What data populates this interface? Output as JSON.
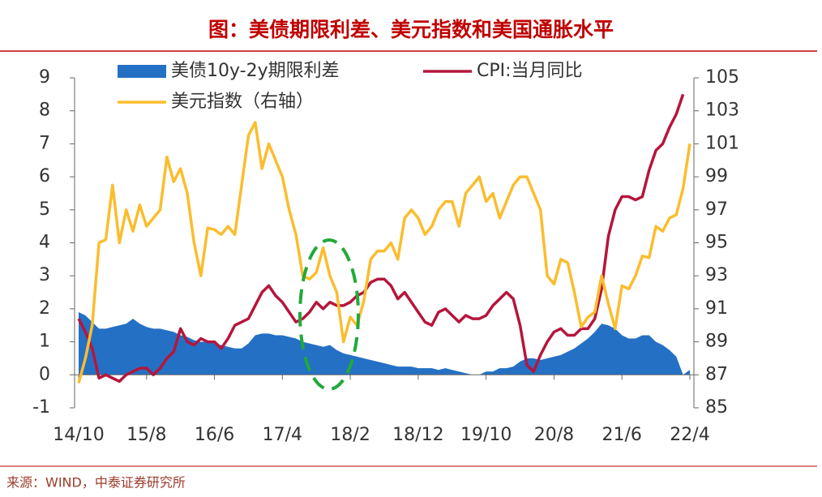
{
  "chart_data": {
    "type": "line",
    "title": "图：美债期限利差、美元指数和美国通胀水平",
    "source": "来源：WIND，中泰证券研究所",
    "categories": [
      "14/10",
      null,
      null,
      null,
      null,
      null,
      null,
      null,
      null,
      null,
      "15/8",
      null,
      null,
      null,
      null,
      null,
      null,
      null,
      null,
      null,
      "16/6",
      null,
      null,
      null,
      null,
      null,
      null,
      null,
      null,
      null,
      "17/4",
      null,
      null,
      null,
      null,
      null,
      null,
      null,
      null,
      null,
      "18/2",
      null,
      null,
      null,
      null,
      null,
      null,
      null,
      null,
      null,
      "18/12",
      null,
      null,
      null,
      null,
      null,
      null,
      null,
      null,
      null,
      "19/10",
      null,
      null,
      null,
      null,
      null,
      null,
      null,
      null,
      null,
      "20/8",
      null,
      null,
      null,
      null,
      null,
      null,
      null,
      null,
      null,
      "21/6",
      null,
      null,
      null,
      null,
      null,
      null,
      null,
      null,
      null,
      "22/4"
    ],
    "ylim": [
      -1,
      9
    ],
    "yticks": [
      -1,
      0,
      1,
      2,
      3,
      4,
      5,
      6,
      7,
      8,
      9
    ],
    "y2lim": [
      85,
      105
    ],
    "y2ticks": [
      85,
      87,
      89,
      91,
      93,
      95,
      97,
      99,
      101,
      103,
      105
    ],
    "series": [
      {
        "name": "美债10y-2y期限利差",
        "type": "area",
        "axis": "y",
        "color": "#2470c4",
        "values": [
          1.9,
          1.8,
          1.6,
          1.4,
          1.4,
          1.45,
          1.5,
          1.55,
          1.7,
          1.55,
          1.45,
          1.4,
          1.4,
          1.35,
          1.3,
          1.2,
          1.15,
          1.05,
          1.0,
          1.0,
          0.95,
          0.9,
          0.85,
          0.8,
          0.8,
          0.95,
          1.2,
          1.25,
          1.25,
          1.2,
          1.2,
          1.15,
          1.1,
          1.0,
          0.95,
          0.9,
          0.85,
          0.9,
          0.75,
          0.65,
          0.6,
          0.55,
          0.5,
          0.45,
          0.4,
          0.35,
          0.3,
          0.25,
          0.25,
          0.25,
          0.2,
          0.2,
          0.2,
          0.15,
          0.2,
          0.15,
          0.1,
          0.05,
          0.0,
          0.0,
          0.1,
          0.1,
          0.2,
          0.2,
          0.25,
          0.4,
          0.5,
          0.5,
          0.45,
          0.5,
          0.55,
          0.6,
          0.7,
          0.8,
          0.95,
          1.1,
          1.3,
          1.55,
          1.5,
          1.4,
          1.2,
          1.1,
          1.1,
          1.2,
          1.2,
          1.0,
          0.9,
          0.75,
          0.55,
          0.0,
          0.15
        ]
      },
      {
        "name": "CPI:当月同比",
        "type": "line",
        "axis": "y",
        "color": "#b5163c",
        "values": [
          1.7,
          1.3,
          0.8,
          -0.1,
          0.0,
          -0.1,
          -0.2,
          0.0,
          0.1,
          0.2,
          0.2,
          0.0,
          0.2,
          0.5,
          0.7,
          1.4,
          1.0,
          0.9,
          1.1,
          1.0,
          1.0,
          0.8,
          1.1,
          1.5,
          1.6,
          1.7,
          2.1,
          2.5,
          2.7,
          2.4,
          2.2,
          1.9,
          1.6,
          1.7,
          1.9,
          2.2,
          2.0,
          2.2,
          2.1,
          2.1,
          2.2,
          2.4,
          2.5,
          2.8,
          2.9,
          2.9,
          2.7,
          2.3,
          2.5,
          2.2,
          1.9,
          1.6,
          1.5,
          1.9,
          2.0,
          1.8,
          1.6,
          1.8,
          1.7,
          1.7,
          1.8,
          2.1,
          2.3,
          2.5,
          2.3,
          1.5,
          0.3,
          0.1,
          0.6,
          1.0,
          1.3,
          1.4,
          1.2,
          1.2,
          1.4,
          1.4,
          1.7,
          2.6,
          4.2,
          5.0,
          5.4,
          5.4,
          5.3,
          5.4,
          6.2,
          6.8,
          7.0,
          7.5,
          7.9,
          8.5,
          null
        ]
      },
      {
        "name": "美元指数（右轴）",
        "type": "line",
        "axis": "y2",
        "color": "#fbbd2e",
        "values": [
          86.5,
          88,
          90,
          95,
          95.2,
          98.5,
          95,
          97,
          95.7,
          97.3,
          96,
          96.5,
          97,
          100.2,
          98.7,
          99.5,
          98,
          95,
          93,
          95.9,
          95.8,
          95.5,
          96,
          95.5,
          98.5,
          101.5,
          102.3,
          99.5,
          101,
          100,
          99,
          97,
          95.5,
          93,
          92.8,
          93.2,
          94.7,
          93,
          92,
          89,
          90.5,
          90,
          91.5,
          94,
          94.5,
          94.5,
          95,
          94,
          96.5,
          97,
          96.5,
          95.5,
          96,
          97,
          97.5,
          97.5,
          96,
          98,
          98.5,
          99,
          97.5,
          98,
          96.5,
          97.5,
          98.5,
          99,
          99,
          98,
          97,
          93,
          92.5,
          94,
          93.8,
          92,
          89.9,
          90.5,
          90.8,
          93,
          91.3,
          89.8,
          92.4,
          92.2,
          93,
          94.2,
          94.1,
          96,
          95.7,
          96.5,
          96.7,
          98.3,
          101
        ]
      }
    ]
  }
}
